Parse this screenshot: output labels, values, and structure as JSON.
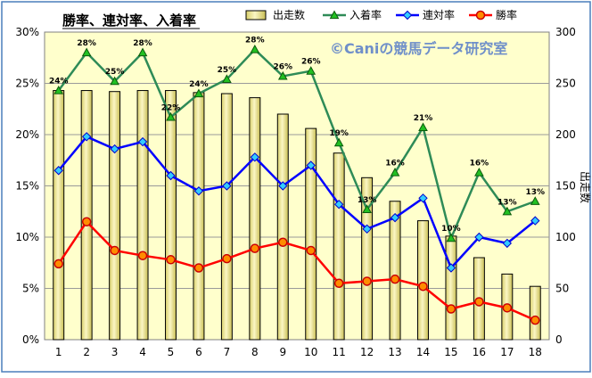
{
  "chart_data": {
    "type": "bar",
    "title": "勝率、連対率、入着率",
    "watermark": "©Caniの競馬データ研究室",
    "xlabel": "",
    "ylabel": "",
    "y2label": "出走数",
    "categories": [
      "1",
      "2",
      "3",
      "4",
      "5",
      "6",
      "7",
      "8",
      "9",
      "10",
      "11",
      "12",
      "13",
      "14",
      "15",
      "16",
      "17",
      "18"
    ],
    "y_ticks": [
      "0%",
      "5%",
      "10%",
      "15%",
      "20%",
      "25%",
      "30%"
    ],
    "y2_ticks": [
      "0",
      "50",
      "100",
      "150",
      "200",
      "250",
      "300"
    ],
    "ylim": [
      0,
      30
    ],
    "y2lim": [
      0,
      300
    ],
    "grid": true,
    "legend_position": "top",
    "series": [
      {
        "name": "出走数",
        "kind": "bar",
        "axis": "right",
        "color": "#e8e090",
        "values": [
          243,
          243,
          242,
          243,
          243,
          241,
          240,
          236,
          220,
          206,
          182,
          158,
          135,
          116,
          101,
          80,
          64,
          52
        ]
      },
      {
        "name": "入着率",
        "kind": "line",
        "axis": "left",
        "color": "#2e8b57",
        "marker": "triangle",
        "values": [
          24.3,
          28.0,
          25.2,
          28.0,
          21.7,
          24.0,
          25.4,
          28.3,
          25.7,
          26.2,
          19.2,
          12.7,
          16.3,
          20.7,
          9.9,
          16.3,
          12.5,
          13.5
        ],
        "labels": [
          "24%",
          "28%",
          "25%",
          "28%",
          "22%",
          "24%",
          "25%",
          "28%",
          "26%",
          "26%",
          "19%",
          "13%",
          "16%",
          "21%",
          "10%",
          "16%",
          "13%",
          "13%"
        ]
      },
      {
        "name": "連対率",
        "kind": "line",
        "axis": "left",
        "color": "#0000ff",
        "marker": "diamond",
        "values": [
          16.5,
          19.8,
          18.6,
          19.3,
          16.0,
          14.5,
          15.0,
          17.8,
          15.0,
          17.0,
          13.2,
          10.8,
          11.9,
          13.8,
          7.0,
          10.0,
          9.4,
          11.6
        ]
      },
      {
        "name": "勝率",
        "kind": "line",
        "axis": "left",
        "color": "#ff0000",
        "marker": "circle",
        "values": [
          7.4,
          11.5,
          8.7,
          8.2,
          7.8,
          7.0,
          7.9,
          8.9,
          9.5,
          8.7,
          5.5,
          5.7,
          5.9,
          5.2,
          3.0,
          3.7,
          3.1,
          1.9
        ]
      }
    ]
  }
}
